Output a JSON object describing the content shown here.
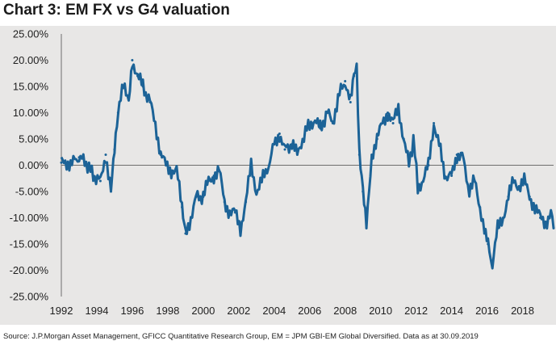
{
  "title": "Chart 3: EM FX vs G4 valuation",
  "source": "Source: J.P.Morgan Asset Management, GFICC Quantitative Research Group, EM = JPM GBI-EM Global Diversified. Data as at 30.09.2019",
  "colors": {
    "line": "#1c6397",
    "background": "#e8e7e6",
    "axis": "#6e6e6e"
  },
  "chart_data": {
    "type": "line",
    "title": "Chart 3: EM FX vs G4 valuation",
    "xlabel": "",
    "ylabel": "",
    "xlim": [
      1992,
      2019.75
    ],
    "ylim": [
      -25,
      25
    ],
    "grid": false,
    "legend": "none",
    "y_ticks": [
      "25.00%",
      "20.00%",
      "15.00%",
      "10.00%",
      "5.00%",
      "0.00%",
      "-5.00%",
      "-10.00%",
      "-15.00%",
      "-20.00%",
      "-25.00%"
    ],
    "x_ticks": [
      "1992",
      "1994",
      "1996",
      "1998",
      "2000",
      "2002",
      "2004",
      "2006",
      "2008",
      "2010",
      "2012",
      "2014",
      "2016",
      "2018"
    ],
    "series": [
      {
        "x": [
          1992.0,
          1992.3,
          1992.6,
          1993.0,
          1993.4,
          1993.8,
          1994.2,
          1994.5,
          1994.8,
          1995.0,
          1995.2,
          1995.5,
          1995.8,
          1996.0,
          1996.3,
          1996.6,
          1997.0,
          1997.3,
          1997.6,
          1997.9,
          1998.2,
          1998.5,
          1998.8,
          1999.0,
          1999.3,
          1999.6,
          2000.0,
          2000.3,
          2000.6,
          2000.9,
          2001.2,
          2001.5,
          2001.8,
          2002.1,
          2002.4,
          2002.7,
          2003.0,
          2003.3,
          2003.6,
          2004.0,
          2004.3,
          2004.6,
          2005.0,
          2005.3,
          2005.6,
          2006.0,
          2006.3,
          2006.6,
          2007.0,
          2007.3,
          2007.6,
          2008.0,
          2008.3,
          2008.5,
          2008.65,
          2008.8,
          2009.0,
          2009.2,
          2009.5,
          2009.8,
          2010.1,
          2010.4,
          2010.7,
          2011.0,
          2011.3,
          2011.6,
          2011.85,
          2012.1,
          2012.4,
          2012.7,
          2013.0,
          2013.3,
          2013.6,
          2014.0,
          2014.3,
          2014.6,
          2015.0,
          2015.3,
          2015.6,
          2015.85,
          2016.05,
          2016.3,
          2016.6,
          2016.9,
          2017.2,
          2017.5,
          2017.8,
          2018.1,
          2018.4,
          2018.7,
          2019.0,
          2019.3,
          2019.6,
          2019.75
        ],
        "values": [
          0.5,
          0.5,
          0.5,
          1.5,
          0.5,
          -2.0,
          -3.0,
          2.0,
          -5.0,
          3.0,
          10.0,
          15.0,
          13.0,
          20.0,
          17.0,
          15.0,
          12.0,
          8.0,
          2.0,
          0.0,
          -1.0,
          -1.0,
          -8.0,
          -13.0,
          -10.0,
          -6.0,
          -6.0,
          -3.0,
          -2.0,
          -1.0,
          -7.0,
          -9.0,
          -9.0,
          -12.0,
          -7.0,
          0.0,
          -5.0,
          -3.0,
          -1.0,
          4.0,
          6.0,
          3.0,
          4.0,
          2.0,
          5.0,
          8.0,
          8.5,
          7.0,
          10.0,
          8.0,
          13.0,
          16.0,
          12.0,
          17.0,
          18.0,
          2.0,
          -5.0,
          -12.0,
          2.0,
          5.0,
          8.0,
          10.0,
          8.0,
          11.0,
          5.0,
          0.0,
          5.0,
          -4.0,
          -3.0,
          0.0,
          8.0,
          4.0,
          -2.0,
          -2.0,
          2.0,
          2.0,
          -5.0,
          -3.0,
          -8.0,
          -13.0,
          -15.0,
          -19.0,
          -12.0,
          -10.0,
          -6.0,
          -3.0,
          -4.0,
          -3.0,
          -6.0,
          -8.0,
          -10.0,
          -11.0,
          -9.0,
          -12.0
        ]
      }
    ]
  }
}
